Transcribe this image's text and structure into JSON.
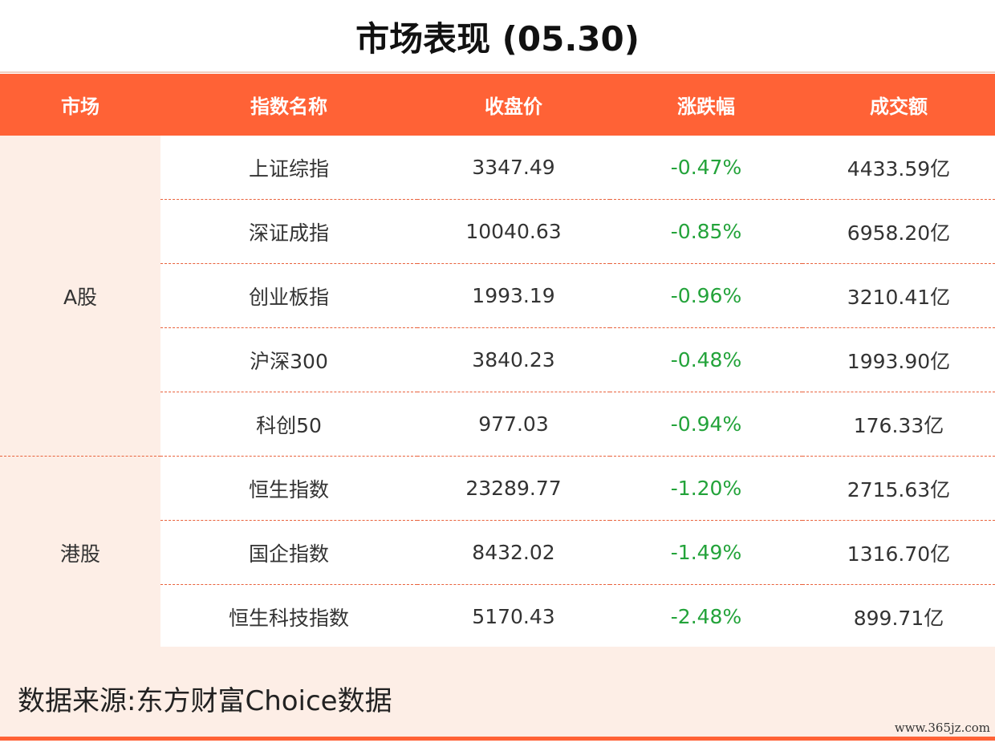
{
  "title": "市场表现 (05.30)",
  "colors": {
    "header_bg": "#ff6236",
    "market_bg": "#fdeee6",
    "change_color": "#23a33a",
    "divider": "#e9623c"
  },
  "columns": [
    "市场",
    "指数名称",
    "收盘价",
    "涨跌幅",
    "成交额"
  ],
  "groups": [
    {
      "market": "A股",
      "rows": [
        {
          "name": "上证综指",
          "close": "3347.49",
          "change": "-0.47%",
          "turnover": "4433.59亿"
        },
        {
          "name": "深证成指",
          "close": "10040.63",
          "change": "-0.85%",
          "turnover": "6958.20亿"
        },
        {
          "name": "创业板指",
          "close": "1993.19",
          "change": "-0.96%",
          "turnover": "3210.41亿"
        },
        {
          "name": "沪深300",
          "close": "3840.23",
          "change": "-0.48%",
          "turnover": "1993.90亿"
        },
        {
          "name": "科创50",
          "close": "977.03",
          "change": "-0.94%",
          "turnover": "176.33亿"
        }
      ]
    },
    {
      "market": "港股",
      "rows": [
        {
          "name": "恒生指数",
          "close": "23289.77",
          "change": "-1.20%",
          "turnover": "2715.63亿"
        },
        {
          "name": "国企指数",
          "close": "8432.02",
          "change": "-1.49%",
          "turnover": "1316.70亿"
        },
        {
          "name": "恒生科技指数",
          "close": "5170.43",
          "change": "-2.48%",
          "turnover": "899.71亿"
        }
      ]
    }
  ],
  "footer": {
    "source": "数据来源:东方财富Choice数据",
    "watermark": "www.365jz.com"
  }
}
